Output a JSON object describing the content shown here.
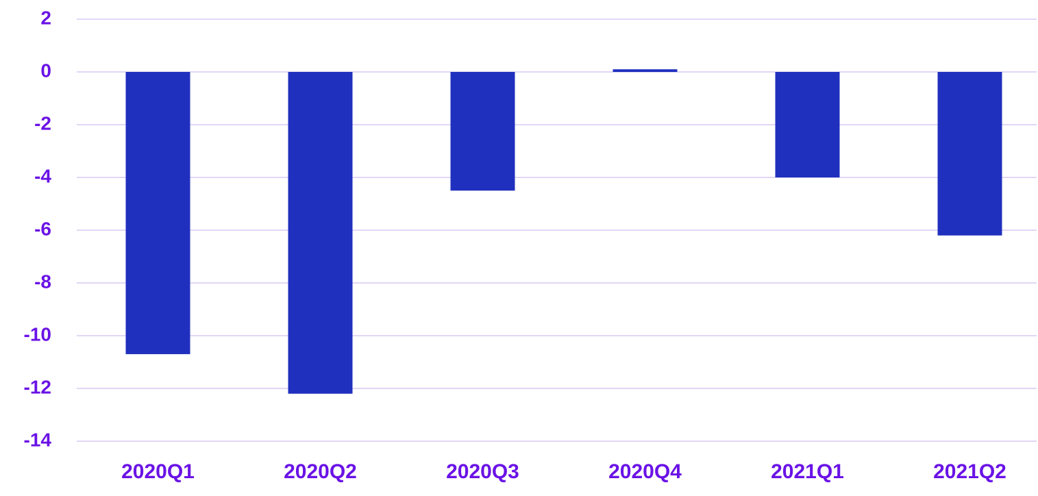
{
  "chart_data": {
    "type": "bar",
    "categories": [
      "2020Q1",
      "2020Q2",
      "2020Q3",
      "2020Q4",
      "2021Q1",
      "2021Q2"
    ],
    "values": [
      -10.7,
      -12.2,
      -4.5,
      0.1,
      -4.0,
      -6.2
    ],
    "color": "#2030be",
    "ylim": [
      -14,
      2
    ],
    "yticks": [
      -14,
      -12,
      -10,
      -8,
      -6,
      -4,
      -2,
      0,
      2
    ],
    "grid": true
  }
}
